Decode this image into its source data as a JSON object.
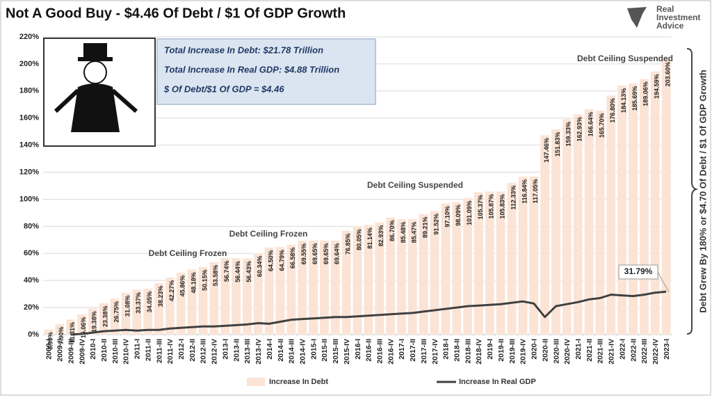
{
  "chart_data": {
    "type": "bar_line",
    "title": "Not A Good Buy - $4.46 Of Debt / $1 Of GDP Growth",
    "brand": [
      "Real",
      "Investment",
      "Advice"
    ],
    "info_box": [
      "Total Increase In Debt:  $21.78 Trillion",
      "Total Increase In Real GDP:  $4.88 Trillion",
      "$ Of Debt/$1 Of GDP = $4.46"
    ],
    "side_note": "Debt Grew By 180% or $4.70 Of Debt / $1 Of GDP Growth",
    "annotations": [
      "Debt Ceiling Frozen",
      "Debt Ceiling Frozen",
      "Debt Ceiling Suspended",
      "Debt Ceiling Suspended",
      "31.79%"
    ],
    "categories": [
      "2009-I",
      "2009-II",
      "2009-III",
      "2009-IV",
      "2010-I",
      "2010-II",
      "2010-III",
      "2010-IV",
      "2011-I",
      "2011-II",
      "2011-III",
      "2011-IV",
      "2012-I",
      "2012-II",
      "2012-III",
      "2012-IV",
      "2013-I",
      "2013-II",
      "2013-III",
      "2013-IV",
      "2014-I",
      "2014-II",
      "2014-III",
      "2014-IV",
      "2015-I",
      "2015-II",
      "2015-III",
      "2015-IV",
      "2016-I",
      "2016-II",
      "2016-III",
      "2016-IV",
      "2017-I",
      "2017-II",
      "2017-III",
      "2017-IV",
      "2018-I",
      "2018-II",
      "2018-III",
      "2018-IV",
      "2019-I",
      "2019-II",
      "2019-III",
      "2019-IV",
      "2020-I",
      "2020-II",
      "2020-III",
      "2020-IV",
      "2021-I",
      "2021-II",
      "2021-III",
      "2021-IV",
      "2022-I",
      "2022-II",
      "2022-III",
      "2022-IV",
      "2023-I"
    ],
    "series": [
      {
        "name": "Increase In Debt",
        "type": "bar",
        "color": "#fbe4d5",
        "values": [
          3.99,
          7.9,
          11.31,
          15.06,
          19.38,
          23.38,
          26.75,
          31.08,
          33.37,
          34.05,
          38.23,
          42.27,
          45.86,
          48.18,
          50.15,
          53.58,
          56.74,
          56.44,
          56.43,
          60.34,
          64.5,
          64.79,
          66.58,
          69.55,
          69.65,
          69.65,
          69.64,
          76.85,
          80.05,
          81.14,
          82.93,
          86.7,
          85.48,
          85.47,
          89.21,
          91.52,
          97.1,
          98.09,
          101.09,
          105.37,
          105.87,
          105.83,
          112.33,
          116.84,
          117.05,
          147.46,
          151.83,
          159.33,
          162.93,
          166.64,
          165.7,
          176.8,
          184.13,
          185.69,
          189.06,
          194.59,
          203.6
        ],
        "value_labels": [
          "3.99%",
          "7.90%",
          "11.31%",
          "15.06%",
          "19.38%",
          "23.38%",
          "26.75%",
          "31.08%",
          "33.37%",
          "34.05%",
          "38.23%",
          "42.27%",
          "45.86%",
          "48.18%",
          "50.15%",
          "53.58%",
          "56.74%",
          "56.44%",
          "56.43%",
          "60.34%",
          "64.50%",
          "64.79%",
          "66.58%",
          "69.55%",
          "69.65%",
          "69.65%",
          "69.64%",
          "76.85%",
          "80.05%",
          "81.14%",
          "82.93%",
          "86.70%",
          "85.48%",
          "85.47%",
          "89.21%",
          "91.52%",
          "97.10%",
          "98.09%",
          "101.09%",
          "105.37%",
          "105.87%",
          "105.83%",
          "112.33%",
          "116.84%",
          "117.05%",
          "147.46%",
          "151.83%",
          "159.33%",
          "162.93%",
          "166.64%",
          "165.70%",
          "176.80%",
          "184.13%",
          "185.69%",
          "189.06%",
          "194.59%",
          "203.60%"
        ]
      },
      {
        "name": "Increase In Real GDP",
        "type": "line",
        "color": "#404040",
        "values": [
          null,
          null,
          0,
          0.5,
          1.5,
          2.5,
          3,
          3.5,
          3,
          3.5,
          3.5,
          4.5,
          5,
          5.5,
          6,
          6,
          6.5,
          7,
          7.5,
          8.5,
          8,
          9.5,
          11,
          11.5,
          12,
          12.5,
          13,
          13,
          13.5,
          14,
          14.5,
          15,
          15.5,
          16,
          17,
          18,
          19,
          20,
          21,
          21.5,
          22,
          22.5,
          23.5,
          24.5,
          23,
          13,
          21,
          22.5,
          24,
          26,
          27,
          29.5,
          29,
          28.5,
          29.5,
          31,
          31.79
        ]
      }
    ],
    "ylim": [
      0,
      220
    ],
    "yticks": [
      {
        "value": 0,
        "label": "0%"
      },
      {
        "value": 20,
        "label": "20%"
      },
      {
        "value": 40,
        "label": "40%"
      },
      {
        "value": 60,
        "label": "60%"
      },
      {
        "value": 80,
        "label": "80%"
      },
      {
        "value": 100,
        "label": "100%"
      },
      {
        "value": 120,
        "label": "120%"
      },
      {
        "value": 140,
        "label": "140%"
      },
      {
        "value": 160,
        "label": "160%"
      },
      {
        "value": 180,
        "label": "180%"
      },
      {
        "value": 200,
        "label": "200%"
      },
      {
        "value": 220,
        "label": "220%"
      }
    ],
    "grid": true,
    "legend": "bottom"
  }
}
